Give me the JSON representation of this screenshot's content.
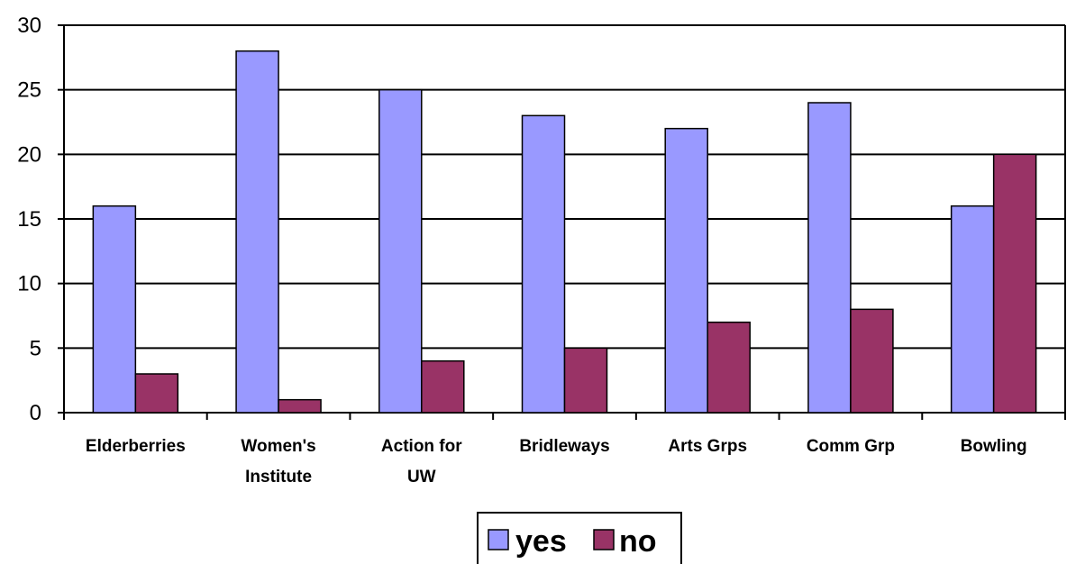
{
  "chart_data": {
    "type": "bar",
    "categories": [
      [
        "Elderberries"
      ],
      [
        "Women's",
        "Institute"
      ],
      [
        "Action for",
        "UW"
      ],
      [
        "Bridleways"
      ],
      [
        "Arts Grps"
      ],
      [
        "Comm Grp"
      ],
      [
        "Bowling"
      ]
    ],
    "series": [
      {
        "name": "yes",
        "values": [
          16,
          28,
          25,
          23,
          22,
          24,
          16
        ],
        "color": "#9999ff"
      },
      {
        "name": "no",
        "values": [
          3,
          1,
          4,
          5,
          7,
          8,
          20
        ],
        "color": "#993366"
      }
    ],
    "title": "",
    "xlabel": "",
    "ylabel": "",
    "ylim": [
      0,
      30
    ],
    "yticks": [
      0,
      5,
      10,
      15,
      20,
      25,
      30
    ],
    "grid": "horizontal",
    "legend": "bottom-center"
  }
}
